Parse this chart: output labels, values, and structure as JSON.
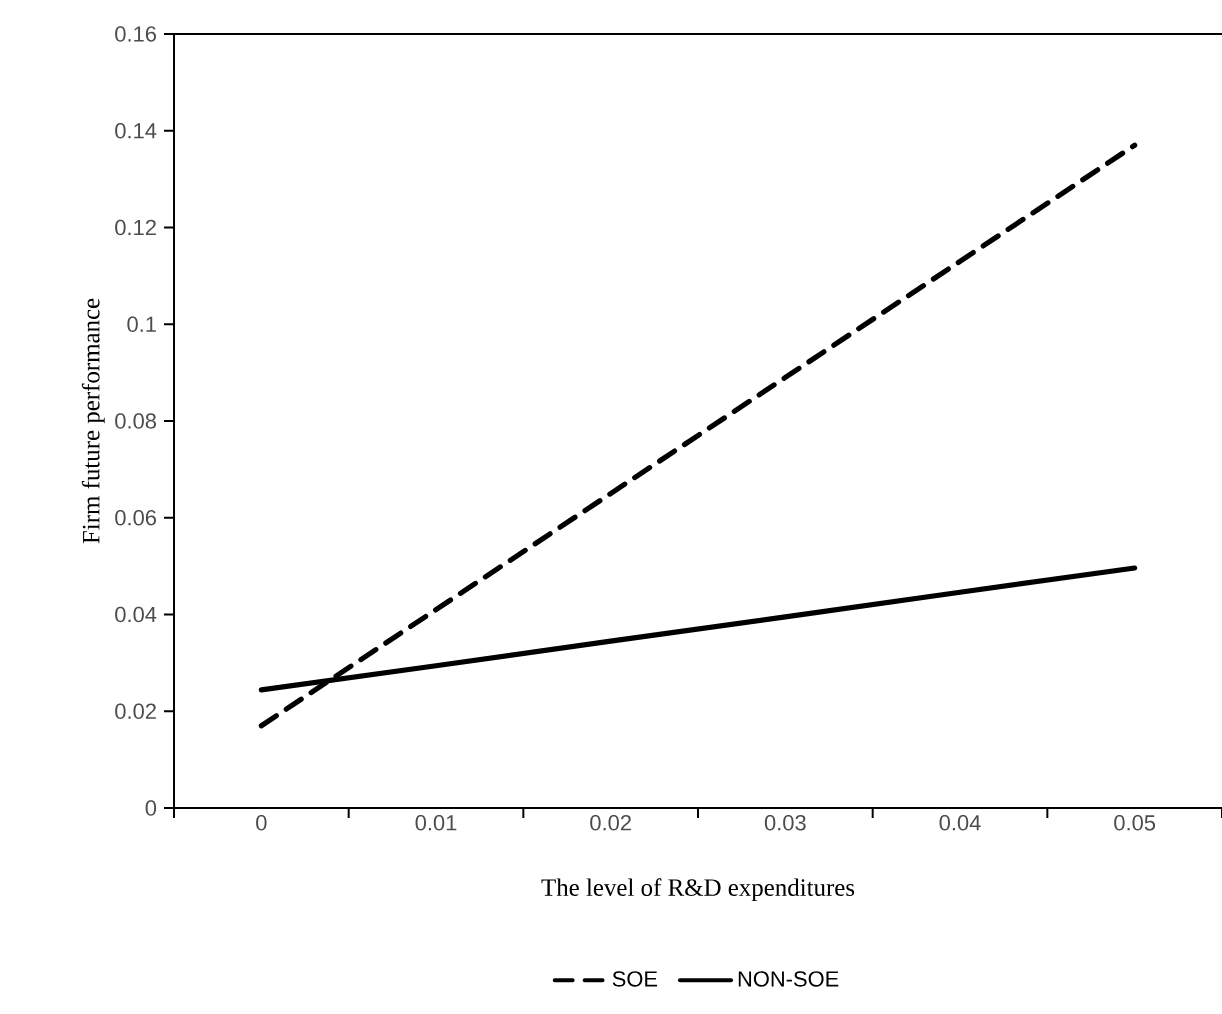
{
  "chart_data": {
    "type": "line",
    "xlabel": "The level of R&D expenditures",
    "ylabel": "Firm future performance",
    "categories": [
      "0",
      "0.01",
      "0.02",
      "0.03",
      "0.04",
      "0.05"
    ],
    "series": [
      {
        "name": "SOE",
        "color": "#000000",
        "line_style": "dashed",
        "values": [
          0.017,
          0.041,
          0.065,
          0.089,
          0.113,
          0.137
        ]
      },
      {
        "name": "NON-SOE",
        "color": "#000000",
        "line_style": "solid",
        "values": [
          0.0244,
          0.0294,
          0.0345,
          0.0395,
          0.0446,
          0.0496
        ]
      }
    ],
    "ylim": [
      0,
      0.16
    ],
    "yticks": [
      0,
      0.02,
      0.04,
      0.06,
      0.08,
      0.1,
      0.12,
      0.14,
      0.16
    ],
    "grid": false,
    "legend": "bottom",
    "marker": "none"
  }
}
